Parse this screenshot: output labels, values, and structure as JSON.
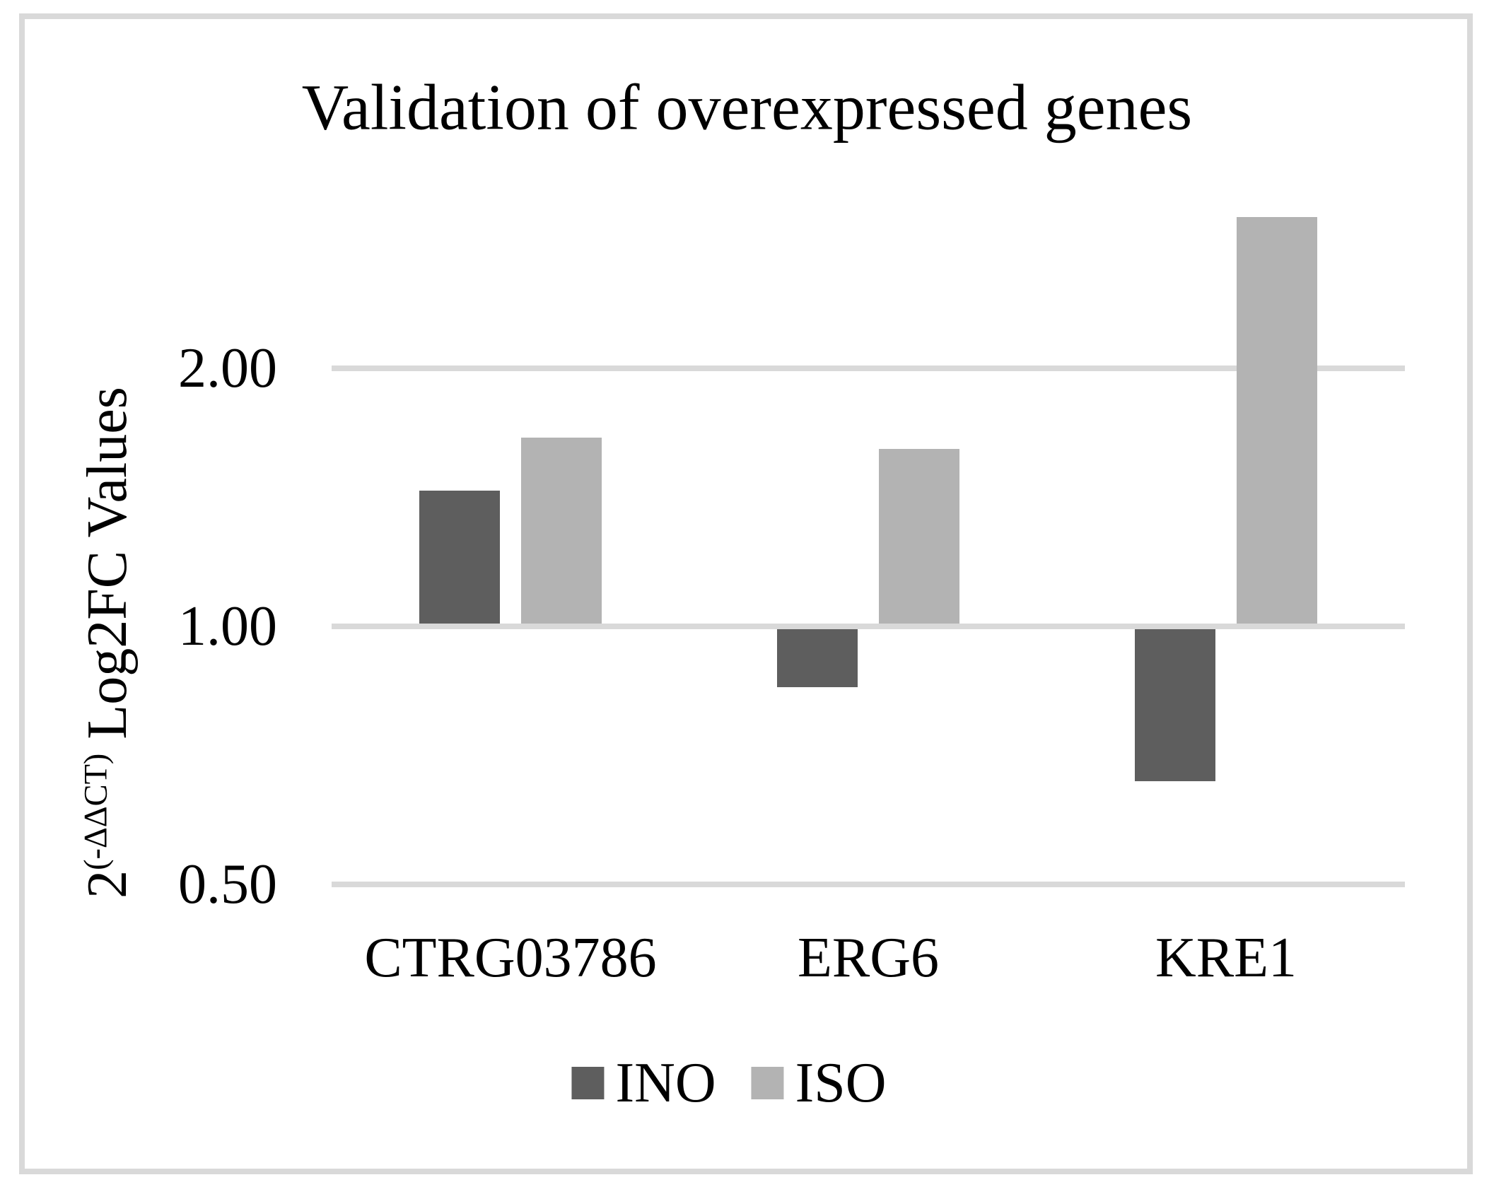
{
  "figure": {
    "background": "#ffffff",
    "border_color": "#d9d9d9"
  },
  "chart_data": {
    "type": "bar",
    "title": "Validation of overexpressed genes",
    "ylabel_base": "2",
    "ylabel_superscript": "(-ΔΔCT)",
    "ylabel_rest": " Log2FC Values",
    "xlabel": "",
    "scale": "log2",
    "baseline": 1.0,
    "grid": "horizontal",
    "gridline_color": "#d9d9d9",
    "legend_position": "bottom",
    "categories": [
      "CTRG03786",
      "ERG6",
      "KRE1"
    ],
    "series": [
      {
        "name": "INO",
        "color": "#5e5e5e",
        "values": [
          1.44,
          0.85,
          0.66
        ]
      },
      {
        "name": "ISO",
        "color": "#b3b3b3",
        "values": [
          1.66,
          1.61,
          3.0
        ]
      }
    ],
    "yticks": [
      {
        "value": 2.0,
        "label": "2.00"
      },
      {
        "value": 1.0,
        "label": "1.00"
      },
      {
        "value": 0.5,
        "label": "0.50"
      }
    ]
  }
}
